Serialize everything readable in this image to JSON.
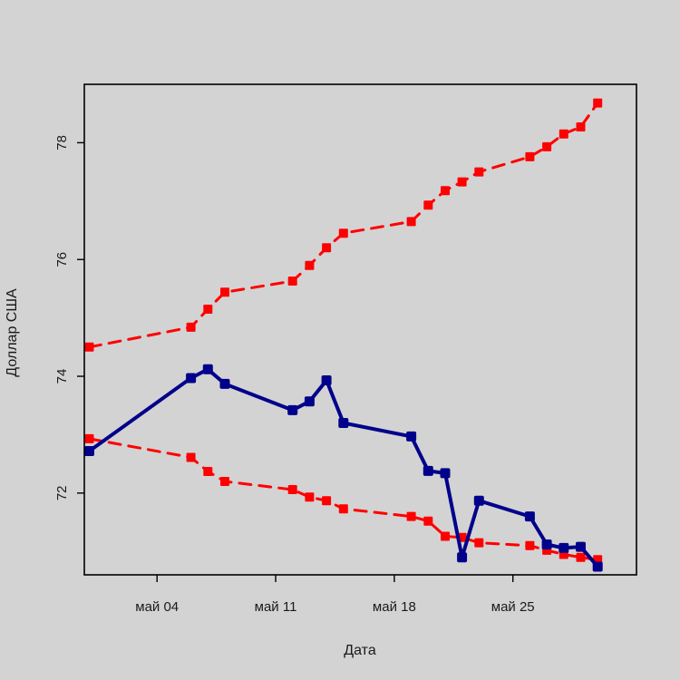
{
  "chart_data": {
    "type": "line",
    "xlabel": "Дата",
    "ylabel": "Доллар США",
    "x_ticks": [
      {
        "date": "2020-05-04",
        "label": "май 04"
      },
      {
        "date": "2020-05-11",
        "label": "май 11"
      },
      {
        "date": "2020-05-18",
        "label": "май 18"
      },
      {
        "date": "2020-05-25",
        "label": "май 25"
      }
    ],
    "y_ticks": [
      72,
      74,
      76,
      78
    ],
    "xlim": [
      "2020-04-29T17:00",
      "2020-06-01T07:00"
    ],
    "ylim": [
      70.6,
      79.0
    ],
    "grid": false,
    "x": [
      "2020-04-30",
      "2020-05-06",
      "2020-05-07",
      "2020-05-08",
      "2020-05-12",
      "2020-05-13",
      "2020-05-14",
      "2020-05-15",
      "2020-05-19",
      "2020-05-20",
      "2020-05-21",
      "2020-05-22",
      "2020-05-23",
      "2020-05-26",
      "2020-05-27",
      "2020-05-28",
      "2020-05-29",
      "2020-05-30"
    ],
    "series": [
      {
        "style": "solid",
        "color": "#00008b",
        "values": [
          72.72,
          73.97,
          74.12,
          73.87,
          73.42,
          73.57,
          73.93,
          73.2,
          72.97,
          72.38,
          72.34,
          70.9,
          71.87,
          71.6,
          71.12,
          71.06,
          71.08,
          70.74
        ]
      },
      {
        "style": "dashed",
        "color": "#ff0000",
        "values": [
          74.5,
          74.84,
          75.15,
          75.44,
          75.63,
          75.9,
          76.2,
          76.45,
          76.65,
          76.93,
          77.18,
          77.33,
          77.5,
          77.76,
          77.93,
          78.15,
          78.27,
          78.68
        ]
      },
      {
        "style": "dashed",
        "color": "#ff0000",
        "values": [
          72.93,
          72.61,
          72.37,
          72.2,
          72.06,
          71.93,
          71.87,
          71.73,
          71.6,
          71.52,
          71.26,
          71.24,
          71.15,
          71.1,
          71.02,
          70.95,
          70.9,
          70.86
        ]
      }
    ]
  }
}
